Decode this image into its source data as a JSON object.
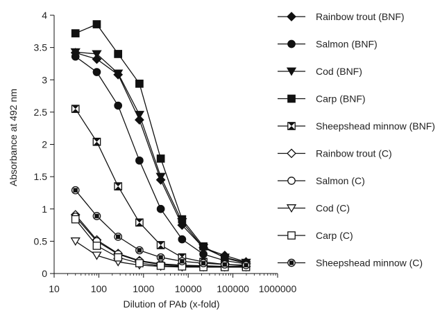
{
  "chart_data": {
    "type": "line",
    "xlabel": "Dilution of PAb (x-fold)",
    "ylabel": "Absorbance at  492 nm",
    "x_scale": "log",
    "xlim": [
      10,
      1000000
    ],
    "ylim": [
      0,
      4
    ],
    "x_ticks": [
      10,
      100,
      1000,
      10000,
      100000,
      1000000
    ],
    "x_tick_labels": [
      "10",
      "100",
      "1000",
      "10000",
      "100000",
      "1000000"
    ],
    "y_ticks": [
      0,
      0.5,
      1,
      1.5,
      2,
      2.5,
      3,
      3.5,
      4
    ],
    "y_tick_labels": [
      "0",
      "0.5",
      "1",
      "1.5",
      "2",
      "2.5",
      "3",
      "3.5",
      "4"
    ],
    "grid": false,
    "legend_position": "right",
    "x": [
      30,
      90,
      270,
      810,
      2430,
      7290,
      21870,
      65610,
      196830
    ],
    "series": [
      {
        "name": "Rainbow trout (BNF)",
        "marker": "diamond",
        "filled": true,
        "values": [
          3.42,
          3.32,
          3.08,
          2.38,
          1.45,
          0.75,
          0.4,
          0.28,
          0.18
        ]
      },
      {
        "name": "Salmon (BNF)",
        "marker": "circle",
        "filled": true,
        "values": [
          3.36,
          3.12,
          2.6,
          1.75,
          1.0,
          0.53,
          0.3,
          0.2,
          0.15
        ]
      },
      {
        "name": "Cod (BNF)",
        "marker": "triangle-down",
        "filled": true,
        "values": [
          3.43,
          3.4,
          3.1,
          2.46,
          1.5,
          0.8,
          0.4,
          0.25,
          0.17
        ]
      },
      {
        "name": "Carp (BNF)",
        "marker": "square",
        "filled": true,
        "values": [
          3.72,
          3.86,
          3.4,
          2.94,
          1.78,
          0.84,
          0.42,
          0.24,
          0.16
        ]
      },
      {
        "name": "Sheepshead minnow (BNF)",
        "marker": "x-square",
        "filled": false,
        "values": [
          2.55,
          2.04,
          1.35,
          0.79,
          0.44,
          0.25,
          0.18,
          0.14,
          0.12
        ]
      },
      {
        "name": "Rainbow trout (C)",
        "marker": "diamond",
        "filled": false,
        "values": [
          0.91,
          0.52,
          0.31,
          0.2,
          0.15,
          0.13,
          0.12,
          0.11,
          0.11
        ]
      },
      {
        "name": "Salmon (C)",
        "marker": "circle",
        "filled": false,
        "values": [
          0.88,
          0.5,
          0.3,
          0.19,
          0.14,
          0.12,
          0.11,
          0.1,
          0.1
        ]
      },
      {
        "name": "Cod (C)",
        "marker": "triangle-down",
        "filled": false,
        "values": [
          0.5,
          0.28,
          0.18,
          0.13,
          0.11,
          0.1,
          0.1,
          0.1,
          0.1
        ]
      },
      {
        "name": "Carp (C)",
        "marker": "square",
        "filled": false,
        "values": [
          0.84,
          0.43,
          0.25,
          0.16,
          0.12,
          0.11,
          0.1,
          0.1,
          0.1
        ]
      },
      {
        "name": "Sheepshead minnow (C)",
        "marker": "circle-cross",
        "filled": false,
        "values": [
          1.29,
          0.89,
          0.57,
          0.36,
          0.25,
          0.19,
          0.16,
          0.14,
          0.13
        ]
      }
    ]
  },
  "colors": {
    "line": "#111111",
    "background": "#ffffff"
  }
}
